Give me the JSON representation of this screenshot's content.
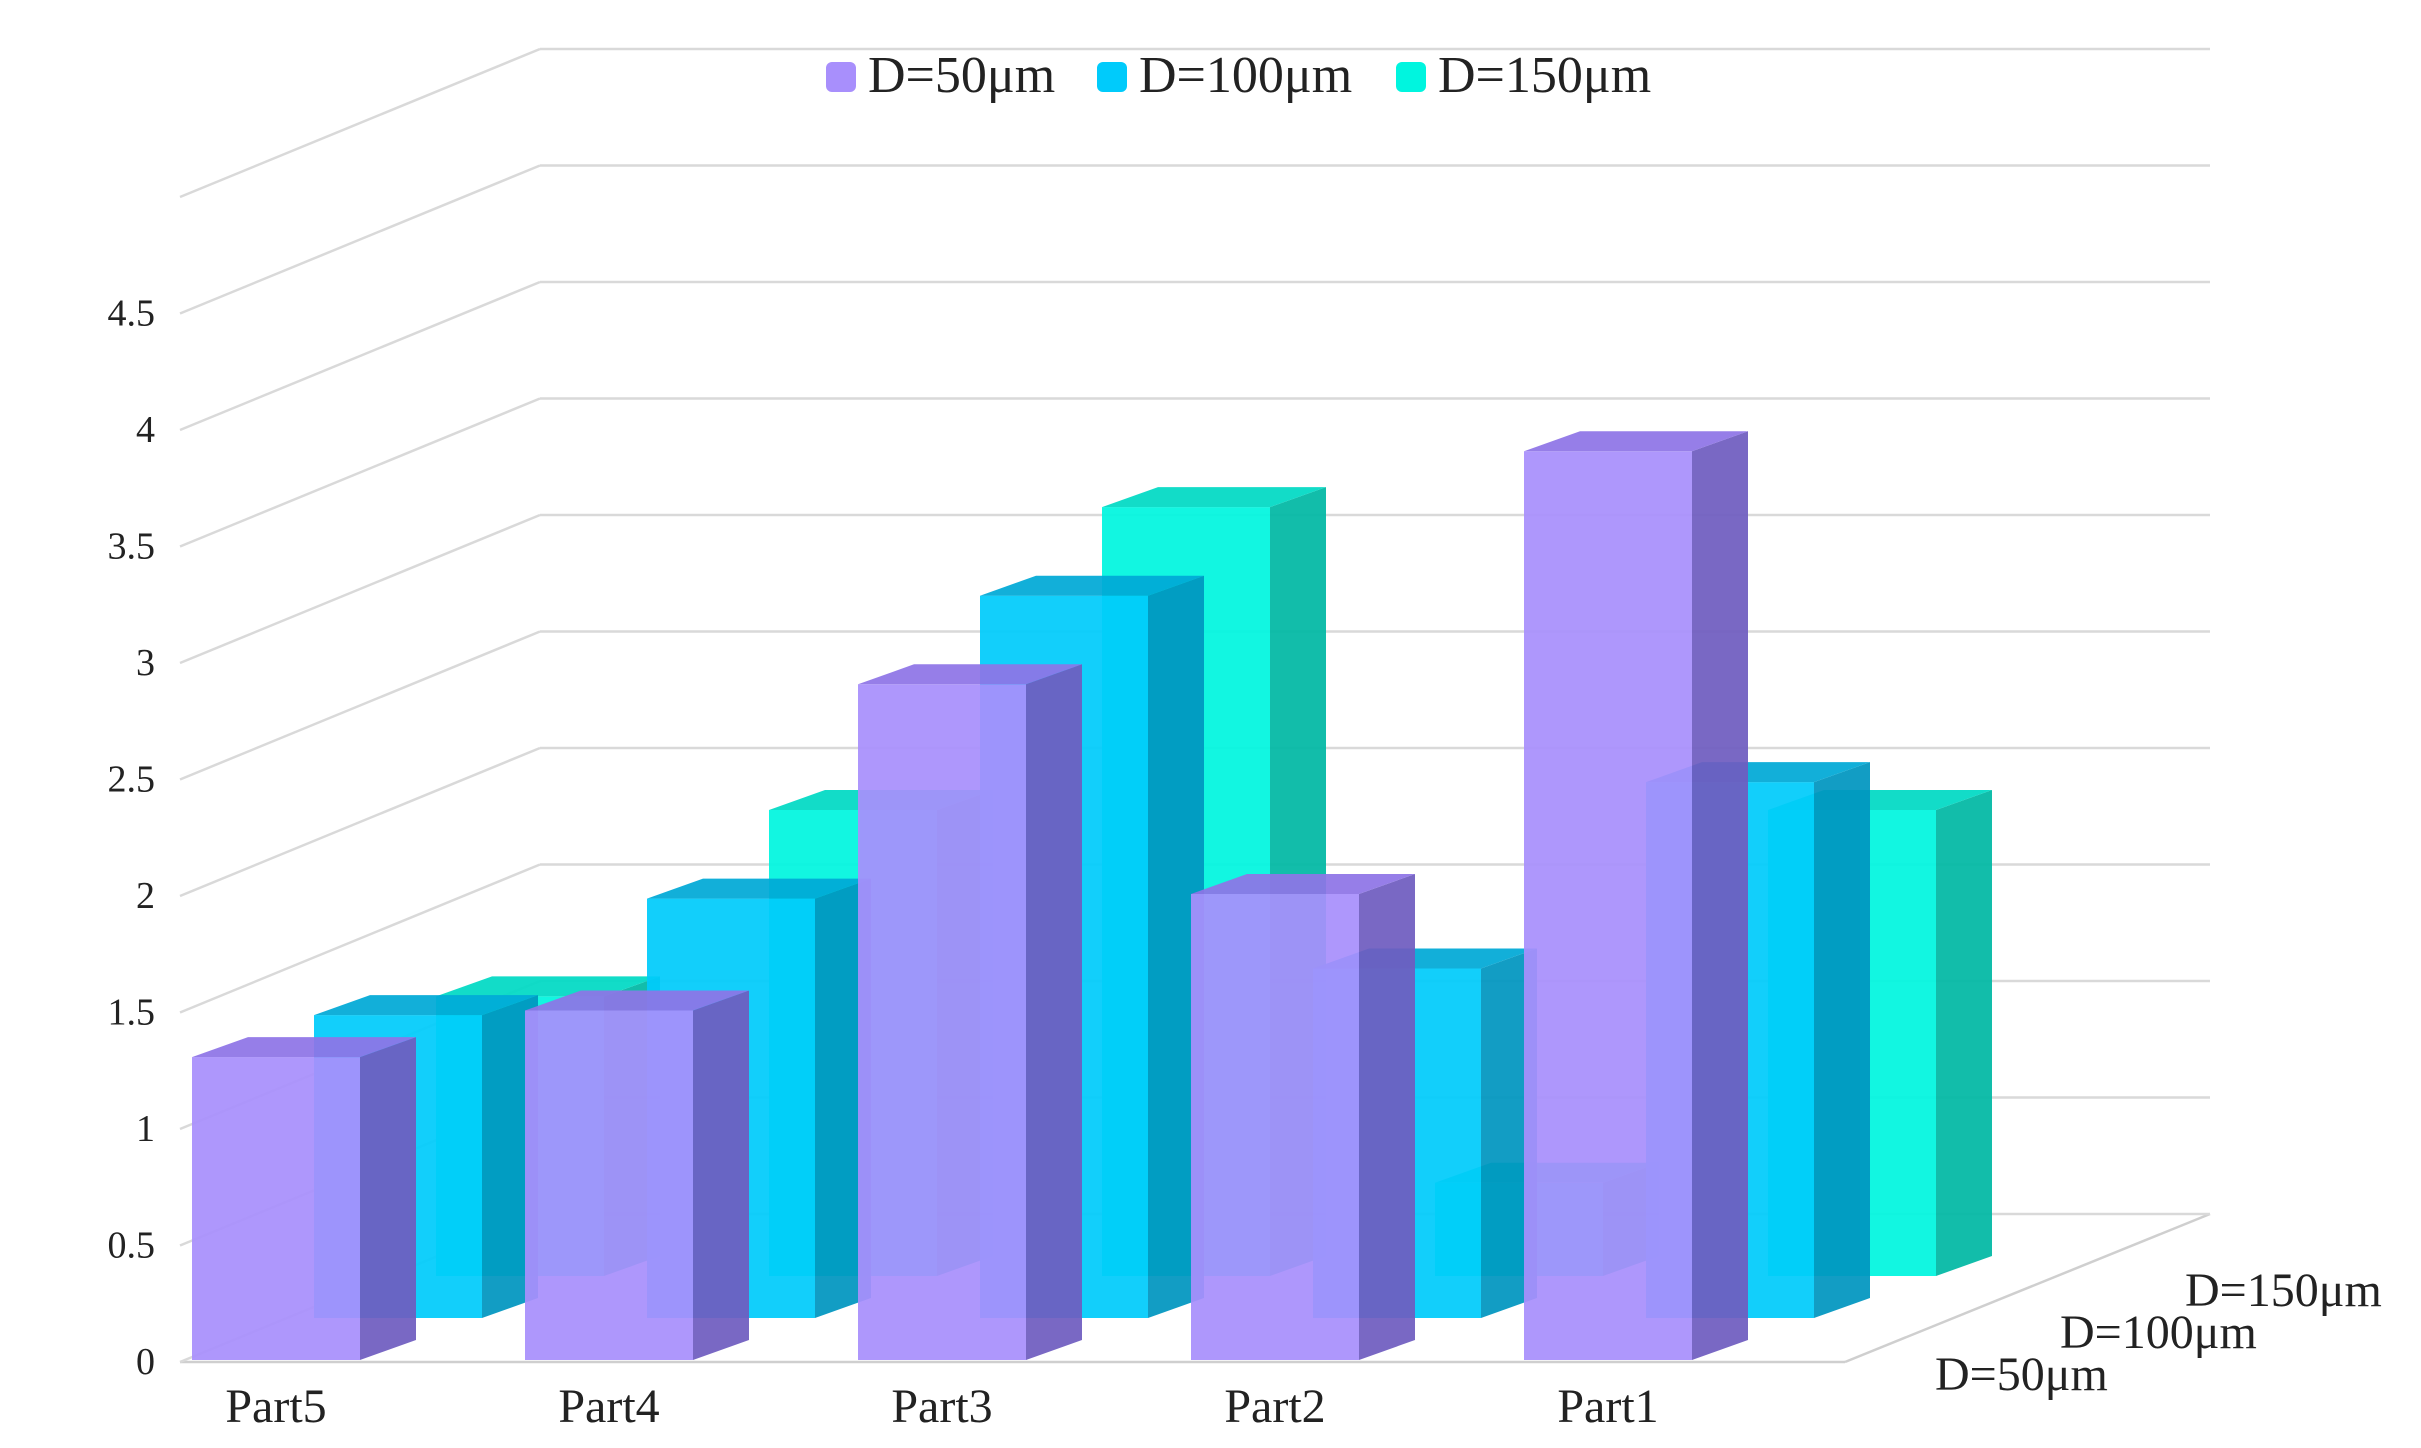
{
  "chart_data": {
    "type": "bar",
    "subtype": "3d-column",
    "title": "",
    "xlabel": "",
    "ylabel": "",
    "categories": [
      "Part5",
      "Part4",
      "Part3",
      "Part2",
      "Part1"
    ],
    "depth_labels": [
      "D=50μm",
      "D=100μm",
      "D=150μm"
    ],
    "ylim": [
      0,
      5
    ],
    "y_ticks": [
      "0",
      "0.5",
      "1",
      "1.5",
      "2",
      "2.5",
      "3",
      "3.5",
      "4",
      "4.5"
    ],
    "legend_position": "top-center",
    "series": [
      {
        "name": "D=50μm",
        "values": [
          1.3,
          1.5,
          2.9,
          2.0,
          3.9
        ],
        "color": "#a88ffc",
        "top_color": "#8e74e6",
        "side_color": "#6f5cc0"
      },
      {
        "name": "D=100μm",
        "values": [
          1.3,
          1.8,
          3.1,
          1.5,
          2.3
        ],
        "color": "#00cbfb",
        "top_color": "#00a9d6",
        "side_color": "#0096bf"
      },
      {
        "name": "D=150μm",
        "values": [
          1.2,
          2.0,
          3.3,
          0.4,
          2.0
        ],
        "color": "#00f5df",
        "top_color": "#00d9c4",
        "side_color": "#00b8a4"
      }
    ]
  }
}
